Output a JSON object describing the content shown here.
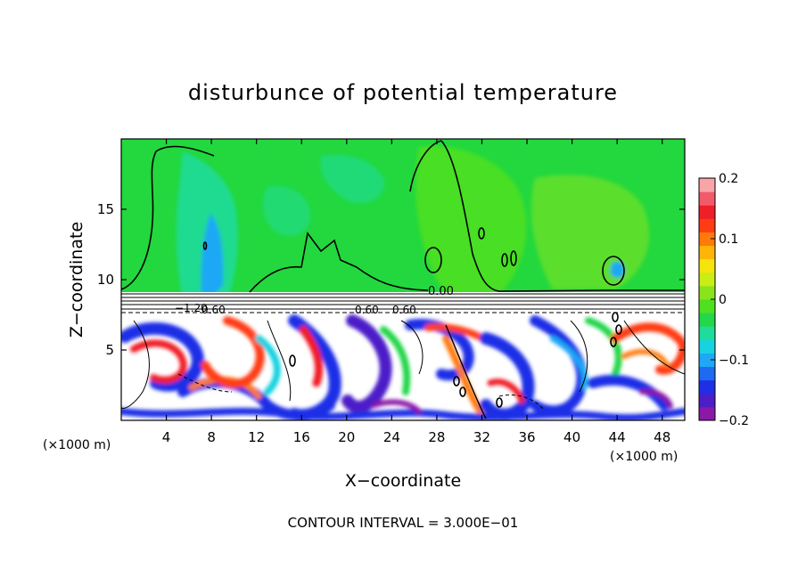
{
  "chart_data": {
    "type": "heatmap",
    "title": "disturbunce of potential temperature",
    "xlabel": "X−coordinate",
    "ylabel": "Z−coordinate",
    "x_unit_left": "(×1000 m)",
    "x_unit_right": "(×1000 m)",
    "xlim": [
      0,
      50
    ],
    "ylim": [
      0,
      20
    ],
    "xticks": [
      4,
      8,
      12,
      16,
      20,
      24,
      28,
      32,
      36,
      40,
      44,
      48
    ],
    "yticks": [
      5,
      10,
      15
    ],
    "colorbar": {
      "range": [
        -0.2,
        0.2
      ],
      "tick_labels": [
        {
          "value": 0.2,
          "label": "0.2"
        },
        {
          "value": 0.1,
          "label": "0.1"
        },
        {
          "value": 0,
          "label": "0"
        },
        {
          "value": -0.1,
          "label": "−0.1"
        },
        {
          "value": -0.2,
          "label": "−0.2"
        }
      ],
      "colors": [
        "#8a19a8",
        "#4b1ec8",
        "#1f2fe6",
        "#1d6bf0",
        "#1ea8f5",
        "#18d2e0",
        "#1fdc9c",
        "#23d64a",
        "#4fe020",
        "#8ae41c",
        "#c8ee14",
        "#f4e40c",
        "#ffb408",
        "#ff7a0a",
        "#ff3c14",
        "#f01e28",
        "#f25a6a",
        "#f8a4a8"
      ]
    },
    "contour_labels": [
      "0.00",
      "−1.20",
      "0.60",
      "0.60",
      "0.60"
    ],
    "contour_interval": "CONTOUR INTERVAL = 3.000E−01"
  }
}
